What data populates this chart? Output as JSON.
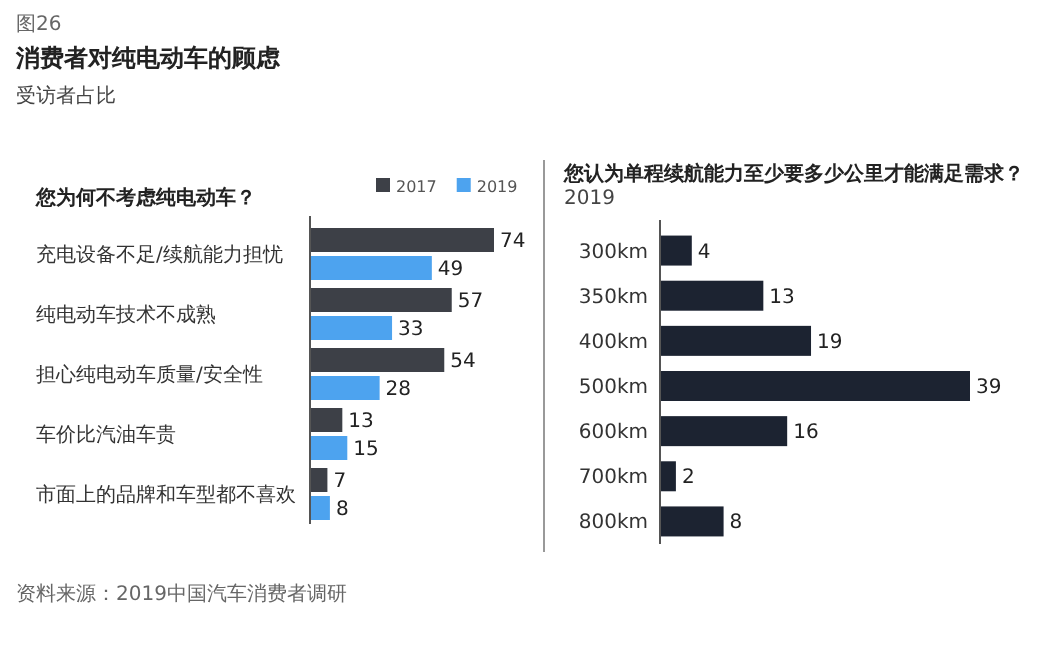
{
  "chart_data": [
    {
      "type": "bar",
      "orientation": "horizontal",
      "title": "您为何不考虑纯电动车？",
      "legend": "top right",
      "data_labels": true,
      "annotations": [
        "图26",
        "消费者对纯电动车的顾虑",
        "受访者占比",
        "资料来源：2019中国汽车消费者调研"
      ],
      "categories": [
        "充电设备不足/续航能力担忧",
        "纯电动车技术不成熟",
        "担心纯电动车质量/安全性",
        "车价比汽油车贵",
        "市面上的品牌和车型都不喜欢"
      ],
      "series": [
        {
          "name": "2017",
          "color": "#3d4047",
          "values": [
            74,
            57,
            54,
            13,
            7
          ]
        },
        {
          "name": "2019",
          "color": "#4da3ef",
          "values": [
            49,
            33,
            28,
            15,
            8
          ]
        }
      ]
    },
    {
      "type": "bar",
      "orientation": "horizontal",
      "title": "您认为单程续航能力至少要多少公里才能满足需求？",
      "subtitle": "2019",
      "data_labels": true,
      "categories": [
        "300km",
        "350km",
        "400km",
        "500km",
        "600km",
        "700km",
        "800km"
      ],
      "values": [
        4,
        13,
        19,
        39,
        16,
        2,
        8
      ],
      "color": "#1c2331"
    }
  ]
}
